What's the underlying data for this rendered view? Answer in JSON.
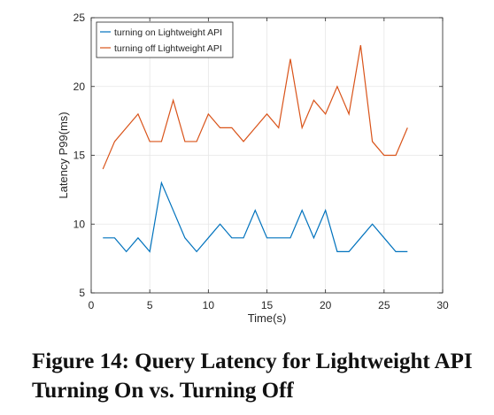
{
  "caption": "Figure 14: Query Latency for Lightweight API Turning On vs. Turning Off",
  "chart_data": {
    "type": "line",
    "title": "",
    "xlabel": "Time(s)",
    "ylabel": "Latency P99(ms)",
    "xlim": [
      0,
      30
    ],
    "ylim": [
      5,
      25
    ],
    "xticks": [
      0,
      5,
      10,
      15,
      20,
      25,
      30
    ],
    "yticks": [
      5,
      10,
      15,
      20,
      25
    ],
    "grid": true,
    "legend_position": "top-left",
    "x": [
      1,
      2,
      3,
      4,
      5,
      6,
      7,
      8,
      9,
      10,
      11,
      12,
      13,
      14,
      15,
      16,
      17,
      18,
      19,
      20,
      21,
      22,
      23,
      24,
      25,
      26,
      27
    ],
    "series": [
      {
        "name": "turning on Lightweight API",
        "color": "#0072BD",
        "values": [
          9,
          9,
          8,
          9,
          8,
          13,
          11,
          9,
          8,
          9,
          10,
          9,
          9,
          11,
          9,
          9,
          9,
          11,
          9,
          11,
          8,
          8,
          9,
          10,
          9,
          8,
          8
        ]
      },
      {
        "name": "turning off Lightweight API",
        "color": "#D95319",
        "values": [
          14,
          16,
          17,
          18,
          16,
          16,
          19,
          16,
          16,
          18,
          17,
          17,
          16,
          17,
          18,
          17,
          22,
          17,
          19,
          18,
          20,
          18,
          23,
          16,
          15,
          15,
          17
        ]
      }
    ]
  }
}
